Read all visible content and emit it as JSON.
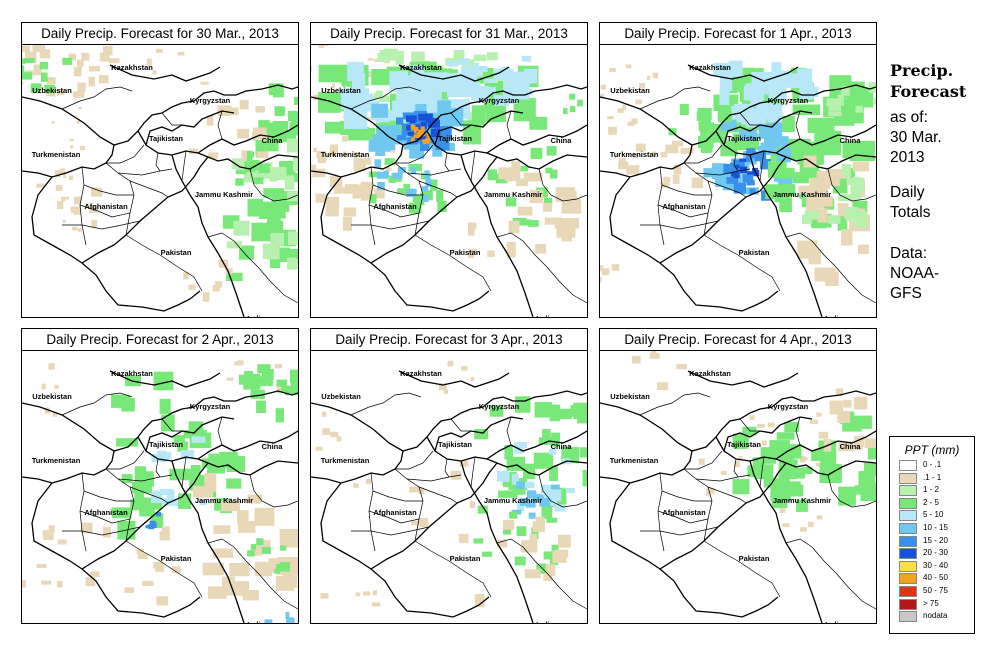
{
  "figure": {
    "panels": [
      {
        "title": "Daily Precip. Forecast for  30 Mar., 2013"
      },
      {
        "title": "Daily Precip. Forecast for  31 Mar., 2013"
      },
      {
        "title": "Daily Precip. Forecast for  1 Apr., 2013"
      },
      {
        "title": "Daily Precip. Forecast for  2 Apr., 2013"
      },
      {
        "title": "Daily Precip. Forecast for  3 Apr., 2013"
      },
      {
        "title": "Daily Precip. Forecast for  4 Apr., 2013"
      }
    ],
    "map_labels": {
      "kazakhstan": "Kazakhstan",
      "uzbekistan": "Uzbekistan",
      "kyrgyzstan": "Kyrgyzstan",
      "tajikistan": "Tajikistan",
      "turkmenistan": "Turkmenistan",
      "china": "China",
      "afghanistan": "Afghanistan",
      "jammu_kashmir": "Jammu Kashmir",
      "pakistan": "Pakistan",
      "india": "India"
    }
  },
  "sidebar": {
    "title_line1": "Precip.",
    "title_line2": "Forecast",
    "asof_line1": "as of:",
    "asof_line2": "30 Mar.",
    "asof_line3": "2013",
    "totals_line1": "Daily",
    "totals_line2": "Totals",
    "data_line1": "Data:",
    "data_line2": "NOAA-",
    "data_line3": "GFS"
  },
  "legend": {
    "title": "PPT (mm)",
    "items": [
      {
        "label": "0 - .1",
        "color": "#ffffff"
      },
      {
        "label": ".1 - 1",
        "color": "#e8d8b8"
      },
      {
        "label": "1 - 2",
        "color": "#b8f0b0"
      },
      {
        "label": "2 - 5",
        "color": "#78e878"
      },
      {
        "label": "5 - 10",
        "color": "#b8e8f8"
      },
      {
        "label": "10 - 15",
        "color": "#70c8f0"
      },
      {
        "label": "15 - 20",
        "color": "#3890e8"
      },
      {
        "label": "20 - 30",
        "color": "#1850d8"
      },
      {
        "label": "30 - 40",
        "color": "#f8e040"
      },
      {
        "label": "40 - 50",
        "color": "#f8a020"
      },
      {
        "label": "50 - 75",
        "color": "#e83018"
      },
      {
        "label": "> 75",
        "color": "#b01818"
      },
      {
        "label": "nodata",
        "color": "#c8c8c8"
      }
    ]
  }
}
